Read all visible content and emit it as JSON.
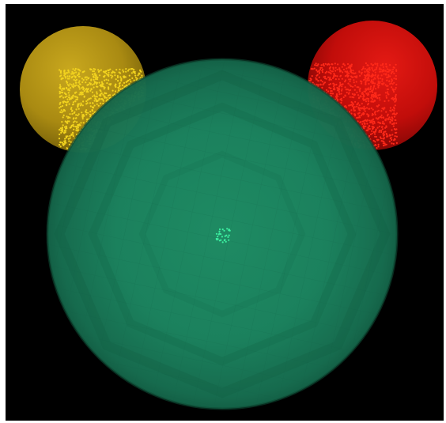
{
  "scene": {
    "background": "#000000",
    "frame_color": "#ffffff",
    "objects": [
      {
        "name": "large-green-sphere",
        "color": "#1a8a61"
      },
      {
        "name": "small-yellow-sphere",
        "color": "#c7a51a"
      },
      {
        "name": "small-red-sphere",
        "color": "#e01515"
      }
    ],
    "point_clouds": [
      {
        "name": "yellow-point-cloud",
        "color": "#f2d31f"
      },
      {
        "name": "red-point-cloud",
        "color": "#ff2a1a"
      },
      {
        "name": "center-point-cluster",
        "color": "#3cf0a0"
      }
    ]
  }
}
